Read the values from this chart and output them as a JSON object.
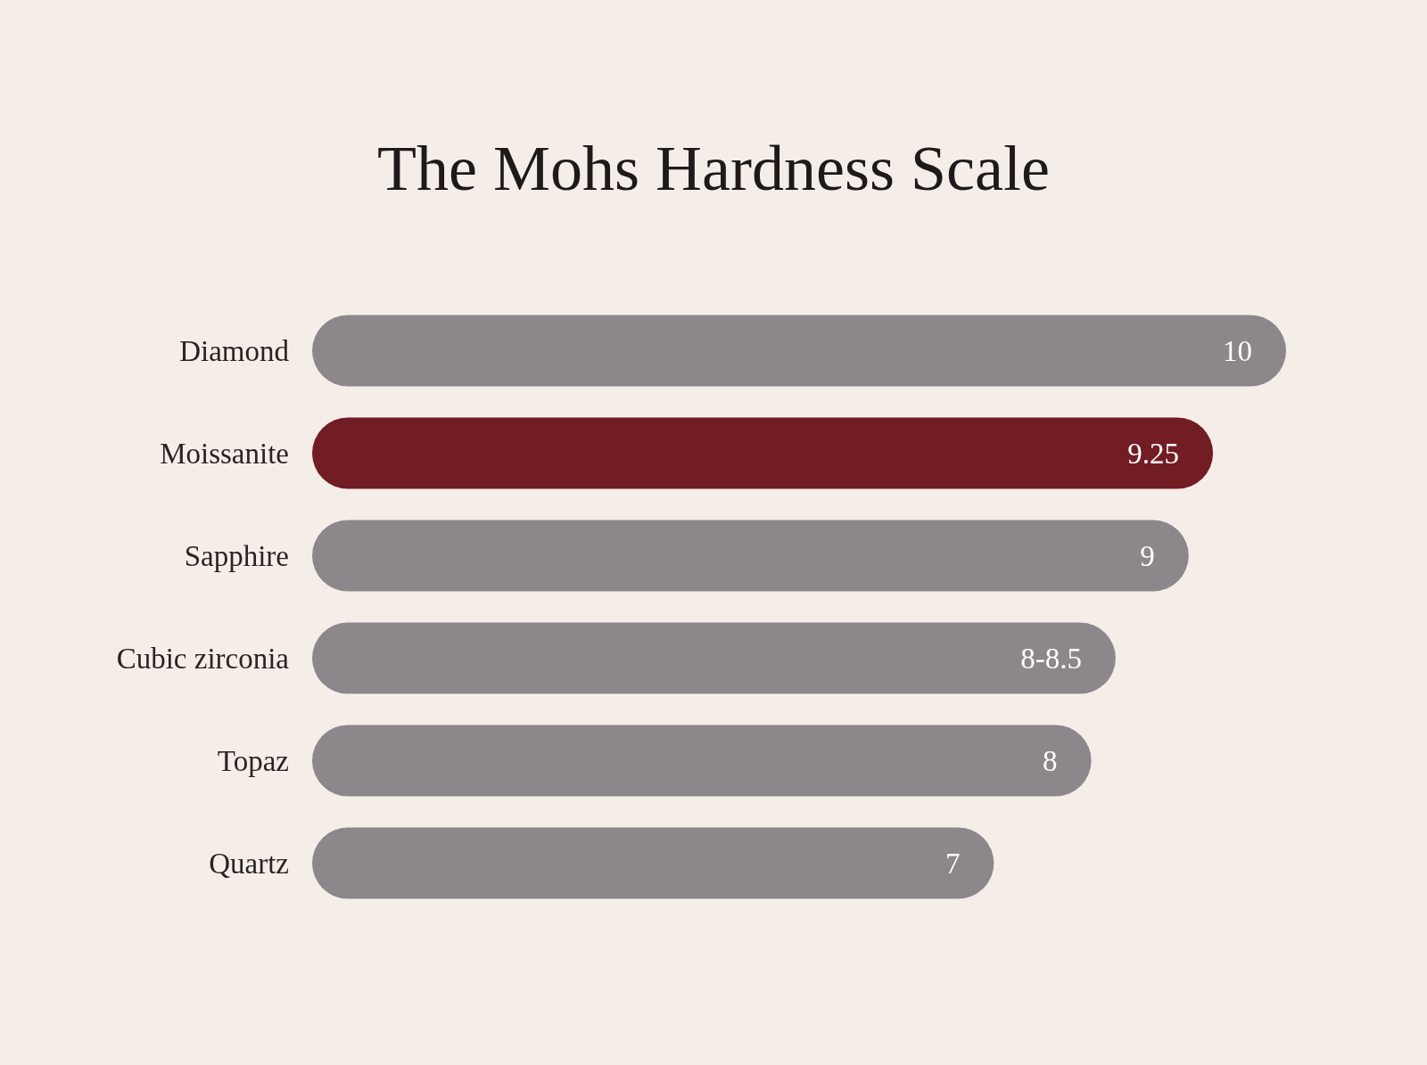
{
  "chart_data": {
    "type": "bar",
    "orientation": "horizontal",
    "title": "The Mohs Hardness Scale",
    "categories": [
      "Diamond",
      "Moissanite",
      "Sapphire",
      "Cubic zirconia",
      "Topaz",
      "Quartz"
    ],
    "values": [
      10,
      9.25,
      9,
      8.25,
      8,
      7
    ],
    "value_labels": [
      "10",
      "9.25",
      "9",
      "8-8.5",
      "8",
      "7"
    ],
    "colors": [
      "#8b878b",
      "#721c24",
      "#8b878b",
      "#8b878b",
      "#8b878b",
      "#8b878b"
    ],
    "tick_labels": "y"
  }
}
